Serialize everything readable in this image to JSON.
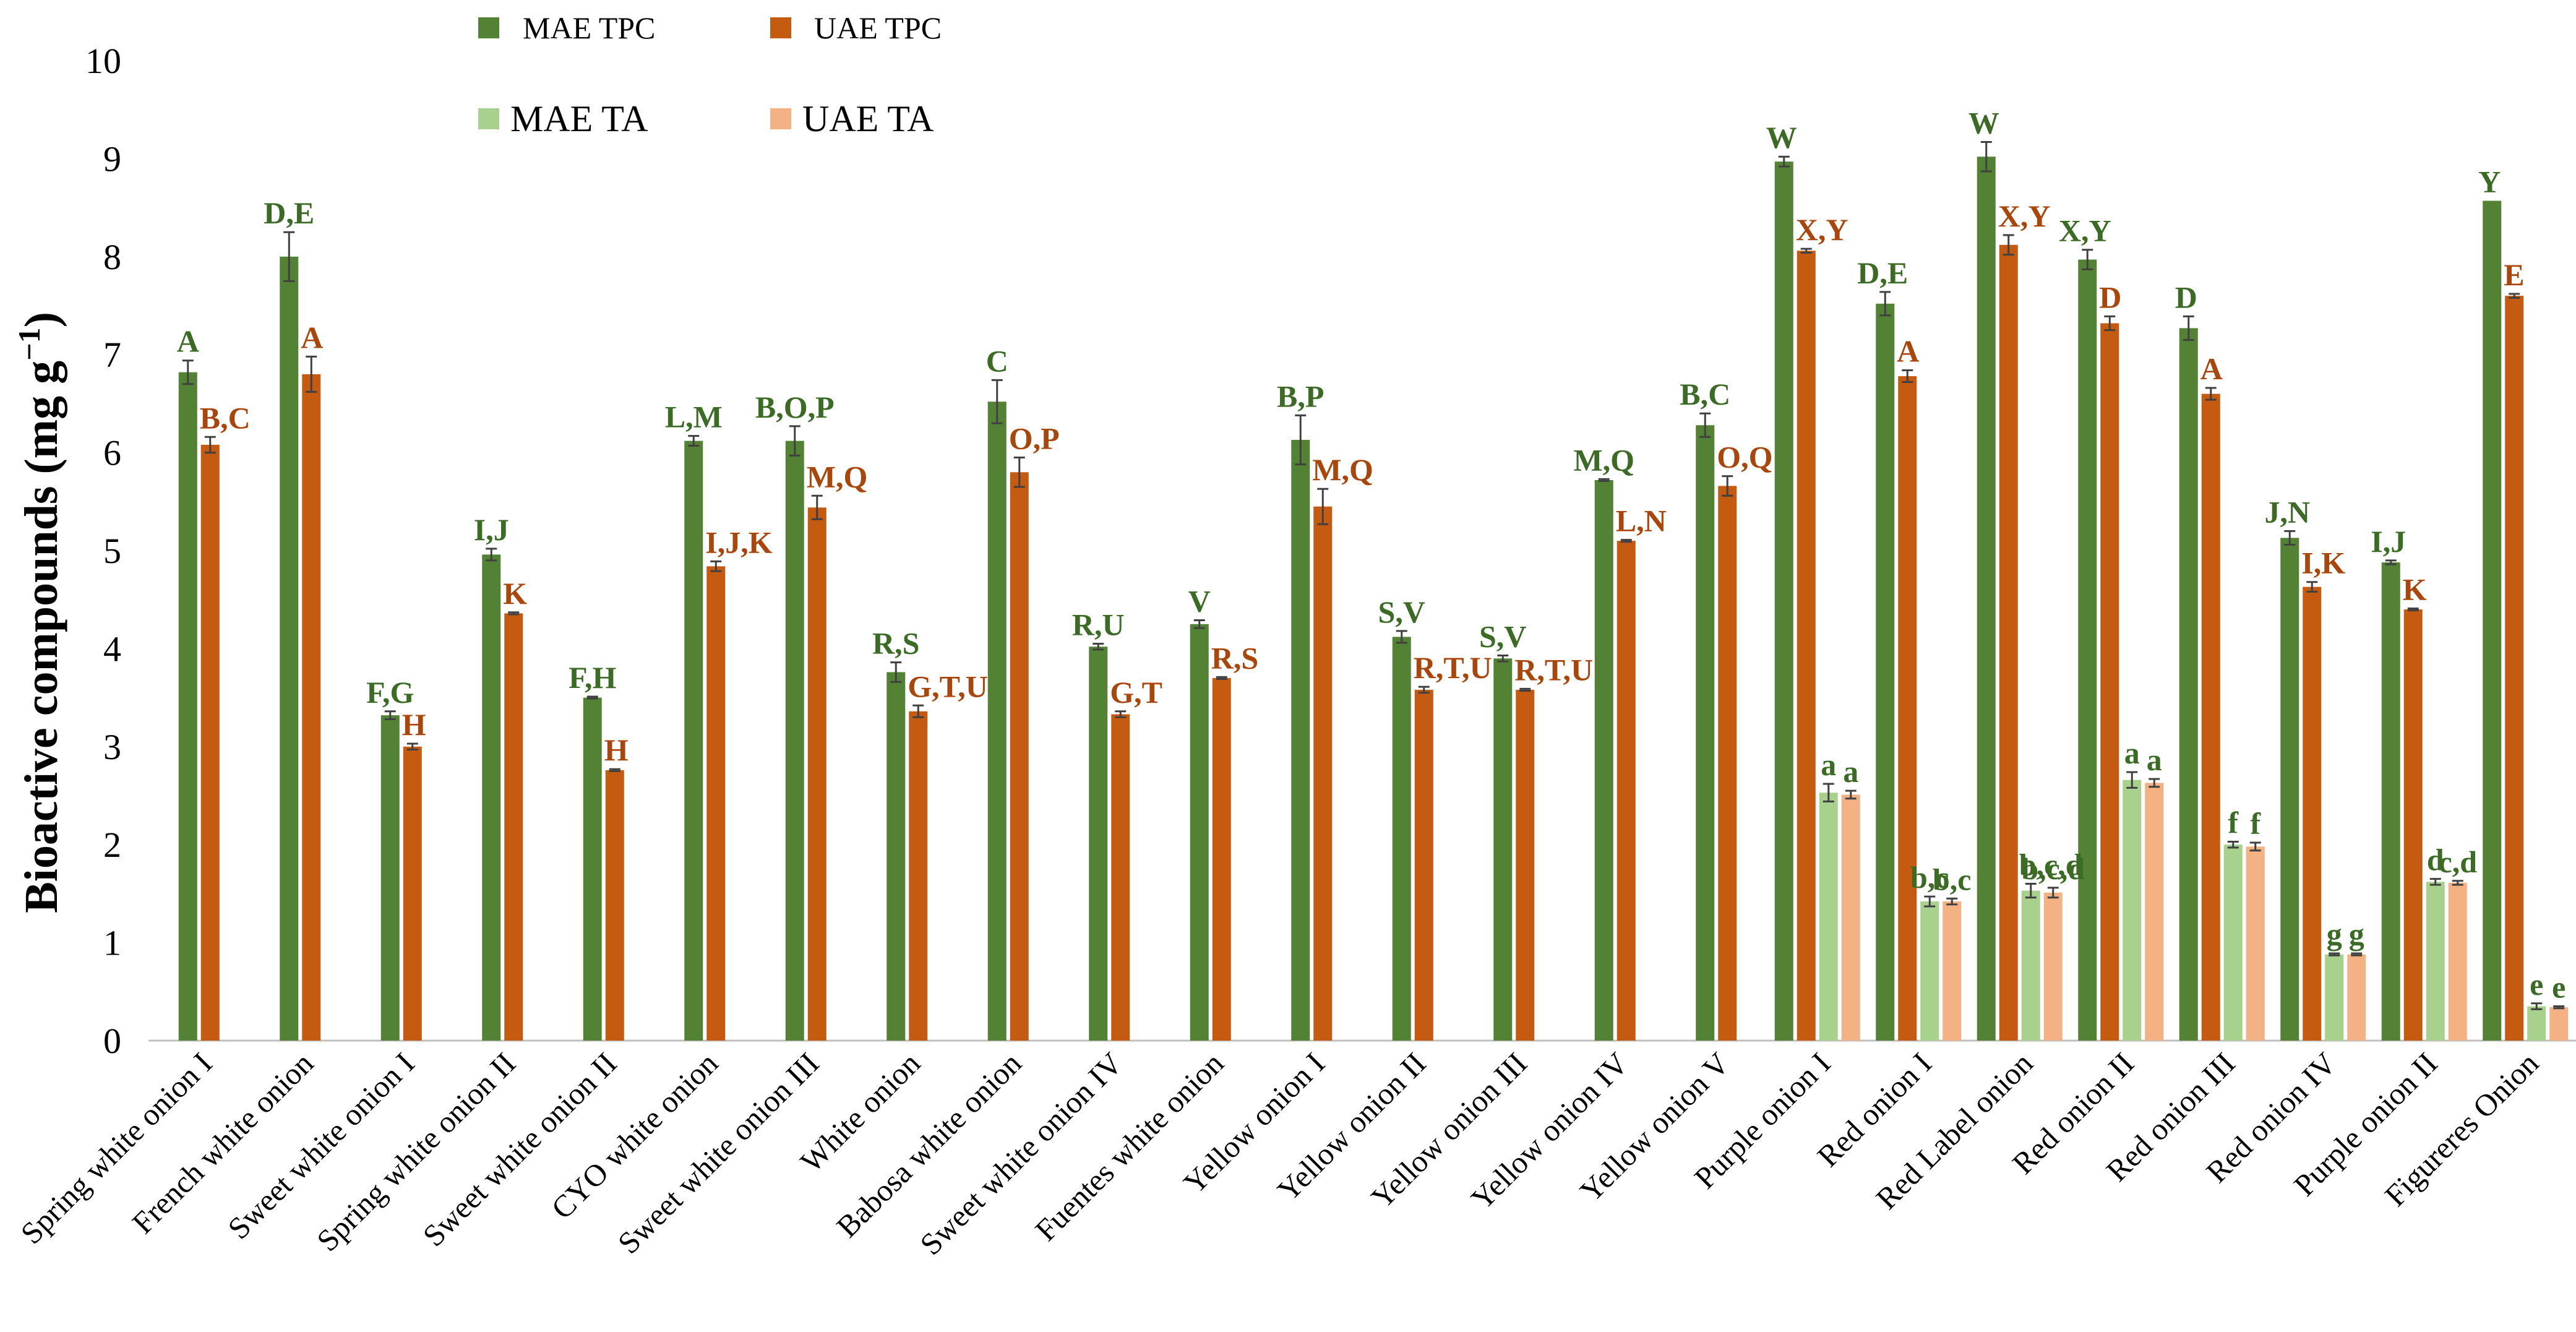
{
  "colors": {
    "mae_tpc": "#548235",
    "uae_tpc": "#C55A11",
    "mae_ta": "#A9D18E",
    "uae_ta": "#F4B183",
    "mae_label": "#3B6B24",
    "uae_label": "#A9460C",
    "axis": "#bfbfbf",
    "errorbar": "#404040"
  },
  "chart_data": {
    "type": "bar",
    "title": "",
    "xlabel": "",
    "ylabel": "Bioactive compounds (mg g",
    "ylabel_sup": "−1",
    "ylabel_close": ")",
    "ylim": [
      0,
      10
    ],
    "yticks": [
      "0",
      "1",
      "2",
      "3",
      "4",
      "5",
      "6",
      "7",
      "8",
      "9",
      "10"
    ],
    "grid": false,
    "legend_position": "top-left",
    "categories": [
      "Spring white onion I",
      "French white onion",
      "Sweet white onion I",
      "Spring white onion II",
      "Sweet white onion II",
      "CYO white onion",
      "Sweet white onion III",
      "White onion",
      "Babosa white onion",
      "Sweet white onion IV",
      "Fuentes white onion",
      "Yellow onion I",
      "Yellow onion II",
      "Yellow onion III",
      "Yellow onion IV",
      "Yellow onion V",
      "Purple onion I",
      "Red onion I",
      "Red Label onion",
      "Red onion II",
      "Red onion III",
      "Red onion IV",
      "Purple onion II",
      "Figureres Onion"
    ],
    "series": [
      {
        "name": "MAE TPC",
        "color_key": "mae_tpc",
        "label_color_key": "mae_label",
        "values": [
          6.82,
          8.0,
          3.32,
          4.96,
          3.5,
          6.12,
          6.12,
          3.76,
          6.52,
          4.02,
          4.25,
          6.13,
          4.12,
          3.9,
          5.72,
          6.28,
          8.97,
          7.52,
          9.02,
          7.97,
          7.27,
          5.13,
          4.88,
          8.57
        ],
        "errors": [
          0.12,
          0.25,
          0.04,
          0.06,
          0.01,
          0.05,
          0.15,
          0.1,
          0.22,
          0.03,
          0.04,
          0.25,
          0.06,
          0.03,
          0.01,
          0.12,
          0.05,
          0.12,
          0.15,
          0.1,
          0.12,
          0.07,
          0.02,
          0.0
        ],
        "labels": [
          "A",
          "D,E",
          "F,G",
          "I,J",
          "F,H",
          "L,M",
          "B,O,P",
          "R,S",
          "C",
          "R,U",
          "V",
          "B,P",
          "S,V",
          "S,V",
          "M,Q",
          "B,C",
          "W",
          "D,E",
          "W",
          "X,Y",
          "D",
          "J,N",
          "I,J",
          "Y"
        ]
      },
      {
        "name": "UAE TPC",
        "color_key": "uae_tpc",
        "label_color_key": "uae_label",
        "values": [
          6.08,
          6.8,
          3.0,
          4.36,
          2.76,
          4.84,
          5.44,
          3.36,
          5.8,
          3.33,
          3.7,
          5.45,
          3.58,
          3.58,
          5.1,
          5.66,
          8.06,
          6.78,
          8.12,
          7.32,
          6.6,
          4.63,
          4.4,
          7.6
        ],
        "errors": [
          0.08,
          0.18,
          0.03,
          0.01,
          0.01,
          0.05,
          0.12,
          0.06,
          0.15,
          0.03,
          0.01,
          0.18,
          0.03,
          0.01,
          0.01,
          0.1,
          0.02,
          0.06,
          0.1,
          0.07,
          0.06,
          0.05,
          0.01,
          0.02
        ],
        "labels": [
          "B,C",
          "A",
          "H",
          "K",
          "H",
          "I,J,K",
          "M,Q",
          "G,T,U",
          "O,P",
          "G,T",
          "R,S",
          "M,Q",
          "R,T,U",
          "R,T,U",
          "L,N",
          "O,Q",
          "X,Y",
          "A",
          "X,Y",
          "D",
          "A",
          "I,K",
          "K",
          "E"
        ]
      },
      {
        "name": "MAE TA",
        "color_key": "mae_ta",
        "label_color_key": "mae_label",
        "values": [
          null,
          null,
          null,
          null,
          null,
          null,
          null,
          null,
          null,
          null,
          null,
          null,
          null,
          null,
          null,
          null,
          2.53,
          1.42,
          1.53,
          2.66,
          2.0,
          0.88,
          1.62,
          0.35
        ],
        "errors": [
          null,
          null,
          null,
          null,
          null,
          null,
          null,
          null,
          null,
          null,
          null,
          null,
          null,
          null,
          null,
          null,
          0.09,
          0.05,
          0.07,
          0.08,
          0.03,
          0.01,
          0.03,
          0.03
        ],
        "labels": [
          "",
          "",
          "",
          "",
          "",
          "",
          "",
          "",
          "",
          "",
          "",
          "",
          "",
          "",
          "",
          "",
          "a",
          "b,c",
          "b,c,d",
          "a",
          "f",
          "g",
          "d",
          "e"
        ]
      },
      {
        "name": "UAE TA",
        "color_key": "uae_ta",
        "label_color_key": "mae_label",
        "values": [
          null,
          null,
          null,
          null,
          null,
          null,
          null,
          null,
          null,
          null,
          null,
          null,
          null,
          null,
          null,
          null,
          2.51,
          1.42,
          1.51,
          2.63,
          1.98,
          0.88,
          1.61,
          0.34
        ],
        "errors": [
          null,
          null,
          null,
          null,
          null,
          null,
          null,
          null,
          null,
          null,
          null,
          null,
          null,
          null,
          null,
          null,
          0.04,
          0.03,
          0.05,
          0.04,
          0.04,
          0.01,
          0.02,
          0.01
        ],
        "labels": [
          "",
          "",
          "",
          "",
          "",
          "",
          "",
          "",
          "",
          "",
          "",
          "",
          "",
          "",
          "",
          "",
          "a",
          "b,c",
          "b,c,d",
          "a",
          "f",
          "g",
          "c,d",
          "e"
        ]
      }
    ]
  }
}
